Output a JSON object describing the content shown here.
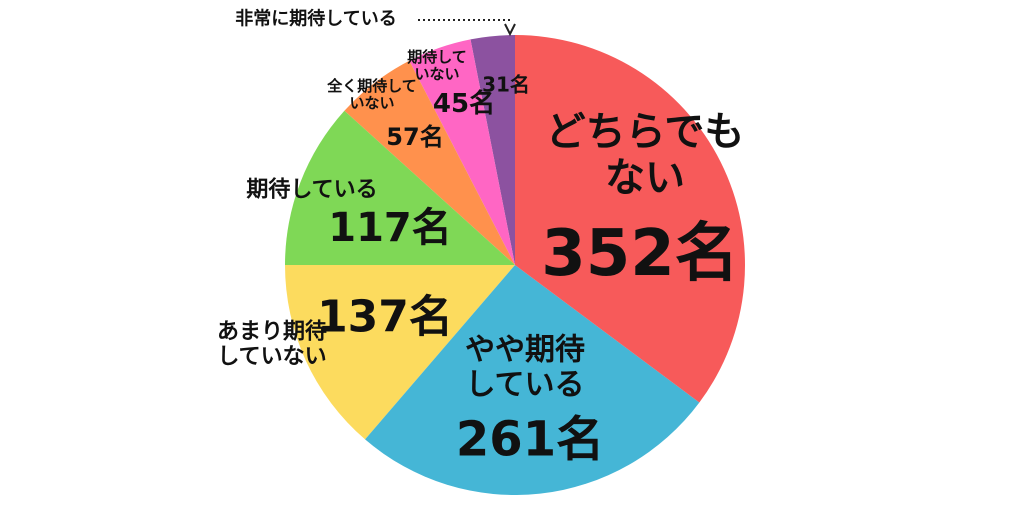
{
  "chart_data": {
    "type": "pie",
    "categories": [
      "どちらでもない",
      "やや期待している",
      "あまり期待していない",
      "期待している",
      "全く期待していない",
      "期待していない",
      "非常に期待している"
    ],
    "values": [
      352,
      261,
      137,
      117,
      57,
      45,
      31
    ],
    "value_labels": [
      "352名",
      "261名",
      "137名",
      "117名",
      "57名",
      "45名",
      "31名"
    ],
    "colors": [
      "#f75a5a",
      "#45b6d6",
      "#fcdb5e",
      "#7fd856",
      "#ff914d",
      "#ff66c4",
      "#8c52a0"
    ]
  }
}
